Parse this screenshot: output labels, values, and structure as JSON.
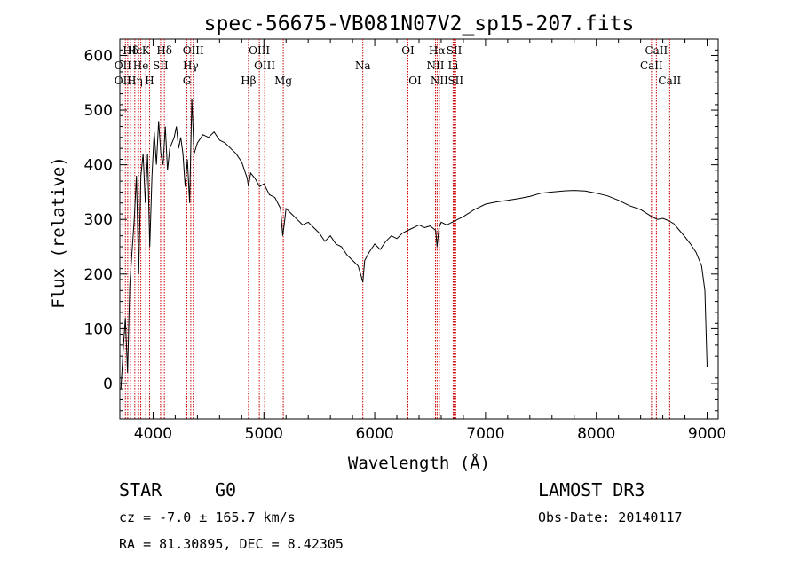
{
  "chart_data": {
    "type": "line",
    "title": "spec-56675-VB081N07V2_sp15-207.fits",
    "xlabel": "Wavelength (Å)",
    "ylabel": "Flux (relative)",
    "xlim": [
      3700,
      9100
    ],
    "ylim": [
      -65,
      630
    ],
    "xticks": [
      4000,
      5000,
      6000,
      7000,
      8000,
      9000
    ],
    "yticks": [
      0,
      100,
      200,
      300,
      400,
      500,
      600
    ],
    "line_color": "#000000",
    "marker_color": "#cc0000",
    "series": [
      {
        "name": "flux",
        "x": [
          3710,
          3730,
          3750,
          3770,
          3790,
          3810,
          3830,
          3850,
          3870,
          3890,
          3910,
          3930,
          3950,
          3970,
          3990,
          4010,
          4030,
          4050,
          4070,
          4090,
          4110,
          4130,
          4150,
          4170,
          4190,
          4210,
          4230,
          4250,
          4270,
          4290,
          4310,
          4330,
          4350,
          4370,
          4400,
          4450,
          4500,
          4550,
          4600,
          4650,
          4700,
          4750,
          4800,
          4850,
          4861,
          4880,
          4920,
          4960,
          5000,
          5050,
          5100,
          5150,
          5170,
          5183,
          5200,
          5250,
          5300,
          5350,
          5400,
          5450,
          5500,
          5550,
          5600,
          5650,
          5700,
          5750,
          5800,
          5850,
          5880,
          5893,
          5910,
          5950,
          6000,
          6050,
          6100,
          6150,
          6200,
          6250,
          6300,
          6350,
          6400,
          6450,
          6500,
          6550,
          6563,
          6580,
          6600,
          6650,
          6700,
          6750,
          6800,
          6900,
          7000,
          7100,
          7200,
          7300,
          7400,
          7500,
          7600,
          7700,
          7800,
          7900,
          8000,
          8100,
          8200,
          8300,
          8400,
          8500,
          8550,
          8600,
          8650,
          8700,
          8750,
          8800,
          8850,
          8900,
          8950,
          8980,
          9000
        ],
        "y": [
          -10,
          60,
          120,
          20,
          180,
          240,
          300,
          380,
          200,
          380,
          420,
          330,
          420,
          250,
          380,
          460,
          400,
          480,
          420,
          400,
          470,
          390,
          430,
          440,
          450,
          470,
          430,
          450,
          420,
          360,
          410,
          330,
          520,
          420,
          440,
          455,
          450,
          460,
          445,
          440,
          430,
          420,
          405,
          375,
          360,
          385,
          375,
          360,
          365,
          345,
          340,
          320,
          270,
          290,
          320,
          310,
          300,
          290,
          295,
          285,
          275,
          260,
          270,
          255,
          250,
          235,
          225,
          215,
          195,
          185,
          225,
          240,
          255,
          245,
          260,
          270,
          265,
          275,
          280,
          285,
          290,
          285,
          288,
          280,
          250,
          285,
          295,
          290,
          295,
          300,
          305,
          318,
          328,
          332,
          335,
          338,
          342,
          348,
          350,
          352,
          353,
          352,
          348,
          343,
          335,
          325,
          318,
          305,
          300,
          302,
          298,
          292,
          280,
          268,
          255,
          240,
          215,
          170,
          30
        ]
      }
    ],
    "line_markers": [
      {
        "label": "Hδ",
        "wl": 3797,
        "row": 0
      },
      {
        "label": "OII",
        "wl": 3727,
        "row": 1
      },
      {
        "label": "OII",
        "wl": 3727,
        "row": 2
      },
      {
        "label": "Hε",
        "wl": 3835,
        "row": 0
      },
      {
        "label": "He",
        "wl": 3889,
        "row": 1
      },
      {
        "label": "Hη",
        "wl": 3835,
        "row": 2
      },
      {
        "label": "K",
        "wl": 3934,
        "row": 0
      },
      {
        "label": "SII",
        "wl": 4068,
        "row": 1
      },
      {
        "label": "H",
        "wl": 3968,
        "row": 2
      },
      {
        "label": "Hδ",
        "wl": 4102,
        "row": 0
      },
      {
        "label": "OIII",
        "wl": 4363,
        "row": 0
      },
      {
        "label": "Hγ",
        "wl": 4340,
        "row": 1
      },
      {
        "label": "G",
        "wl": 4305,
        "row": 2
      },
      {
        "label": "Hβ",
        "wl": 4861,
        "row": 2
      },
      {
        "label": "OIII",
        "wl": 4959,
        "row": 0
      },
      {
        "label": "OIII",
        "wl": 5007,
        "row": 1
      },
      {
        "label": "Mg",
        "wl": 5175,
        "row": 2
      },
      {
        "label": "Na",
        "wl": 5893,
        "row": 1
      },
      {
        "label": "OI",
        "wl": 6300,
        "row": 0
      },
      {
        "label": "OI",
        "wl": 6364,
        "row": 2
      },
      {
        "label": "Hα",
        "wl": 6563,
        "row": 0
      },
      {
        "label": "NII",
        "wl": 6548,
        "row": 1
      },
      {
        "label": "NII",
        "wl": 6583,
        "row": 2
      },
      {
        "label": "SII",
        "wl": 6717,
        "row": 0
      },
      {
        "label": "Li",
        "wl": 6708,
        "row": 1
      },
      {
        "label": "SII",
        "wl": 6731,
        "row": 2
      },
      {
        "label": "CaII",
        "wl": 8542,
        "row": 0
      },
      {
        "label": "CaII",
        "wl": 8498,
        "row": 1
      },
      {
        "label": "CaII",
        "wl": 8662,
        "row": 2
      }
    ],
    "marker_lines": [
      3727,
      3750,
      3771,
      3797,
      3835,
      3869,
      3889,
      3934,
      3968,
      4068,
      4102,
      4305,
      4340,
      4363,
      4861,
      4959,
      5007,
      5175,
      5893,
      6300,
      6364,
      6548,
      6563,
      6583,
      6708,
      6717,
      6731,
      8498,
      8542,
      8662
    ]
  },
  "footer": {
    "object_class": "STAR",
    "subclass": "G0",
    "survey": "LAMOST DR3",
    "redshift": "cz = -7.0 ± 165.7 km/s",
    "obs_date": "Obs-Date: 20140117",
    "coords": "RA =  81.30895, DEC =   8.42305"
  }
}
